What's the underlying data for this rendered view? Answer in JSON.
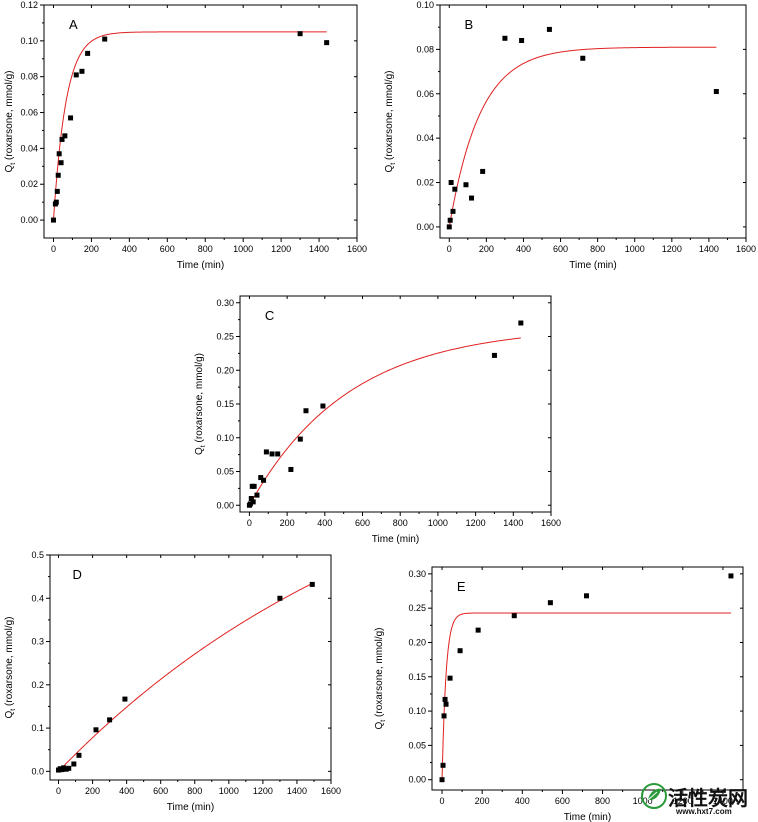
{
  "chart_data": [
    {
      "type": "scatter",
      "panel_label": "A",
      "xlabel": "Time (min)",
      "ylabel": "Q",
      "ylabel_sub": "t",
      "ylabel_rest": " (roxarsone, mmol/g)",
      "xlim": [
        -50,
        1600
      ],
      "ylim": [
        -0.01,
        0.12
      ],
      "xticks": [
        0,
        200,
        400,
        600,
        800,
        1000,
        1200,
        1400,
        1600
      ],
      "yticks": [
        0.0,
        0.02,
        0.04,
        0.06,
        0.08,
        0.1,
        0.12
      ],
      "ytick_decimals": 2,
      "points": [
        [
          0,
          0.0
        ],
        [
          10,
          0.009
        ],
        [
          15,
          0.01
        ],
        [
          20,
          0.016
        ],
        [
          25,
          0.025
        ],
        [
          30,
          0.037
        ],
        [
          40,
          0.032
        ],
        [
          45,
          0.045
        ],
        [
          60,
          0.047
        ],
        [
          90,
          0.057
        ],
        [
          120,
          0.081
        ],
        [
          150,
          0.083
        ],
        [
          180,
          0.093
        ],
        [
          270,
          0.101
        ],
        [
          1300,
          0.104
        ],
        [
          1440,
          0.099
        ]
      ],
      "fit": {
        "type": "first-order",
        "qe": 0.105,
        "k": 0.015,
        "xmax": 1440
      },
      "colors": {
        "fit": "#e02020",
        "points": "#000000"
      }
    },
    {
      "type": "scatter",
      "panel_label": "B",
      "xlabel": "Time (min)",
      "ylabel": "Q",
      "ylabel_sub": "t",
      "ylabel_rest": " (roxarsone, mmol/g)",
      "xlim": [
        -50,
        1600
      ],
      "ylim": [
        -0.005,
        0.1
      ],
      "xticks": [
        0,
        200,
        400,
        600,
        800,
        1000,
        1200,
        1400,
        1600
      ],
      "yticks": [
        0.0,
        0.02,
        0.04,
        0.06,
        0.08,
        0.1
      ],
      "ytick_decimals": 2,
      "points": [
        [
          0,
          0.0
        ],
        [
          5,
          0.003
        ],
        [
          10,
          0.02
        ],
        [
          20,
          0.007
        ],
        [
          30,
          0.017
        ],
        [
          90,
          0.019
        ],
        [
          120,
          0.013
        ],
        [
          180,
          0.025
        ],
        [
          300,
          0.085
        ],
        [
          390,
          0.084
        ],
        [
          540,
          0.089
        ],
        [
          720,
          0.076
        ],
        [
          1440,
          0.061
        ]
      ],
      "fit": {
        "type": "first-order",
        "qe": 0.081,
        "k": 0.006,
        "xmax": 1440
      },
      "colors": {
        "fit": "#e02020",
        "points": "#000000"
      }
    },
    {
      "type": "scatter",
      "panel_label": "C",
      "xlabel": "Time (min)",
      "ylabel": "Q",
      "ylabel_sub": "t",
      "ylabel_rest": " (roxarsone, mmol/g)",
      "xlim": [
        -50,
        1600
      ],
      "ylim": [
        -0.01,
        0.31
      ],
      "xticks": [
        0,
        200,
        400,
        600,
        800,
        1000,
        1200,
        1400,
        1600
      ],
      "yticks": [
        0.0,
        0.05,
        0.1,
        0.15,
        0.2,
        0.25,
        0.3
      ],
      "ytick_decimals": 2,
      "points": [
        [
          0,
          0.0
        ],
        [
          5,
          0.002
        ],
        [
          10,
          0.01
        ],
        [
          15,
          0.028
        ],
        [
          20,
          0.005
        ],
        [
          25,
          0.028
        ],
        [
          40,
          0.015
        ],
        [
          60,
          0.041
        ],
        [
          75,
          0.037
        ],
        [
          90,
          0.079
        ],
        [
          120,
          0.076
        ],
        [
          150,
          0.076
        ],
        [
          220,
          0.053
        ],
        [
          270,
          0.098
        ],
        [
          300,
          0.14
        ],
        [
          390,
          0.147
        ],
        [
          1300,
          0.222
        ],
        [
          1440,
          0.27
        ]
      ],
      "fit": {
        "type": "first-order",
        "qe": 0.265,
        "k": 0.0019,
        "xmax": 1440
      },
      "colors": {
        "fit": "#e02020",
        "points": "#000000"
      }
    },
    {
      "type": "scatter",
      "panel_label": "D",
      "xlabel": "Time (min)",
      "ylabel": "Q",
      "ylabel_sub": "t",
      "ylabel_rest": " (roxarsone, mmol/g)",
      "xlim": [
        -50,
        1600
      ],
      "ylim": [
        -0.02,
        0.5
      ],
      "xticks": [
        0,
        200,
        400,
        600,
        800,
        1000,
        1200,
        1400,
        1600
      ],
      "yticks": [
        0.0,
        0.1,
        0.2,
        0.3,
        0.4,
        0.5
      ],
      "ytick_decimals": 1,
      "points": [
        [
          0,
          0.003
        ],
        [
          10,
          0.006
        ],
        [
          20,
          0.004
        ],
        [
          30,
          0.008
        ],
        [
          45,
          0.005
        ],
        [
          60,
          0.007
        ],
        [
          90,
          0.017
        ],
        [
          120,
          0.037
        ],
        [
          220,
          0.096
        ],
        [
          300,
          0.119
        ],
        [
          390,
          0.167
        ],
        [
          1300,
          0.4
        ],
        [
          1490,
          0.432
        ]
      ],
      "fit": {
        "type": "first-order",
        "qe": 0.85,
        "k": 0.00048,
        "xmax": 1490
      },
      "colors": {
        "fit": "#e02020",
        "points": "#000000"
      }
    },
    {
      "type": "scatter",
      "panel_label": "E",
      "xlabel": "Time (min)",
      "ylabel": "Q",
      "ylabel_sub": "t",
      "ylabel_rest": " (roxarsone, mmol/g)",
      "xlim": [
        -50,
        1500
      ],
      "ylim": [
        -0.015,
        0.31
      ],
      "xticks": [
        0,
        200,
        400,
        600,
        800,
        1000,
        1200,
        1400
      ],
      "yticks": [
        0.0,
        0.05,
        0.1,
        0.15,
        0.2,
        0.25,
        0.3
      ],
      "ytick_decimals": 2,
      "points": [
        [
          0,
          0.0
        ],
        [
          5,
          0.021
        ],
        [
          10,
          0.093
        ],
        [
          15,
          0.117
        ],
        [
          20,
          0.11
        ],
        [
          40,
          0.148
        ],
        [
          90,
          0.188
        ],
        [
          180,
          0.218
        ],
        [
          360,
          0.239
        ],
        [
          540,
          0.258
        ],
        [
          720,
          0.268
        ],
        [
          1440,
          0.297
        ]
      ],
      "fit": {
        "type": "first-order",
        "qe": 0.243,
        "k": 0.05,
        "xmax": 1440
      },
      "colors": {
        "fit": "#e02020",
        "points": "#000000"
      }
    }
  ],
  "watermark": {
    "text_cn": "活性炭网",
    "url": "www.hxt7.com"
  }
}
